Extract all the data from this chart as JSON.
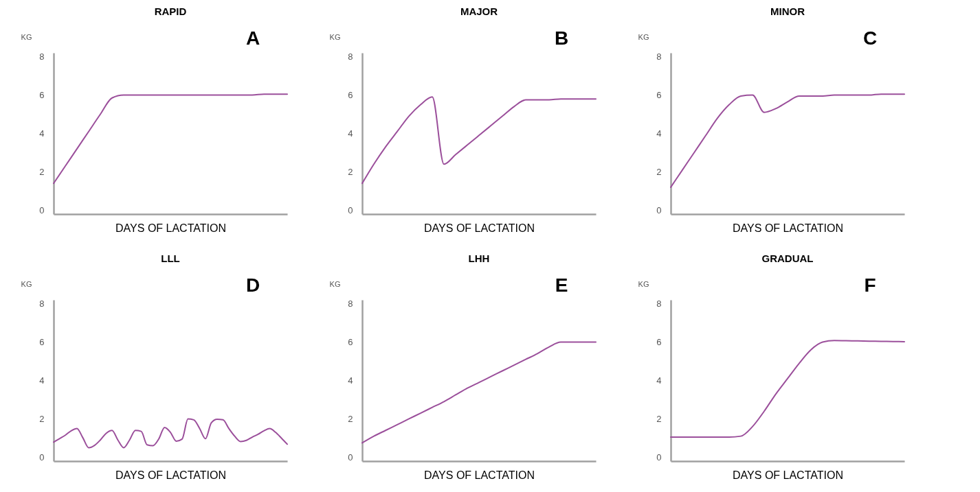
{
  "chart_data": [
    {
      "type": "line",
      "title": "RAPID",
      "annotations": [
        "A"
      ],
      "xlabel": "DAYS OF LACTATION",
      "ylabel": "KG",
      "ylim": [
        -0.2,
        8.2
      ],
      "yticks": [
        0,
        2,
        4,
        6,
        8
      ],
      "tick_labels": "y",
      "categories": [
        null,
        null,
        null,
        null,
        null,
        null,
        null,
        null,
        null,
        null,
        null,
        null,
        null,
        null,
        null,
        null,
        null,
        null,
        null,
        null,
        null
      ],
      "series": [
        {
          "color": "#9b4f9b",
          "values": [
            1.4,
            2.3,
            3.2,
            4.1,
            5.0,
            5.85,
            6.0,
            6.0,
            6.0,
            6.0,
            6.0,
            6.0,
            6.0,
            6.0,
            6.0,
            6.0,
            6.0,
            6.0,
            6.05,
            6.05,
            6.05
          ]
        }
      ]
    },
    {
      "type": "line",
      "title": "MAJOR",
      "annotations": [
        "B"
      ],
      "xlabel": "DAYS OF LACTATION",
      "ylabel": "KG",
      "ylim": [
        -0.2,
        8.2
      ],
      "yticks": [
        0,
        2,
        4,
        6,
        8
      ],
      "tick_labels": "y",
      "categories": [
        null,
        null,
        null,
        null,
        null,
        null,
        null,
        null,
        null,
        null,
        null,
        null,
        null,
        null,
        null,
        null,
        null,
        null,
        null,
        null,
        null
      ],
      "series": [
        {
          "color": "#9b4f9b",
          "values": [
            1.4,
            2.4,
            3.3,
            4.1,
            4.9,
            5.5,
            5.9,
            2.4,
            2.9,
            3.4,
            3.9,
            4.4,
            4.9,
            5.4,
            5.75,
            5.75,
            5.75,
            5.8,
            5.8,
            5.8,
            5.8
          ]
        }
      ]
    },
    {
      "type": "line",
      "title": "MINOR",
      "annotations": [
        "C"
      ],
      "xlabel": "DAYS OF LACTATION",
      "ylabel": "KG",
      "ylim": [
        -0.2,
        8.2
      ],
      "yticks": [
        0,
        2,
        4,
        6,
        8
      ],
      "tick_labels": "y",
      "categories": [
        null,
        null,
        null,
        null,
        null,
        null,
        null,
        null,
        null,
        null,
        null,
        null,
        null,
        null,
        null,
        null,
        null,
        null,
        null,
        null,
        null
      ],
      "series": [
        {
          "color": "#9b4f9b",
          "values": [
            1.2,
            2.1,
            3.0,
            3.9,
            4.8,
            5.5,
            5.95,
            6.0,
            5.1,
            5.3,
            5.65,
            5.95,
            5.95,
            5.95,
            6.0,
            6.0,
            6.0,
            6.0,
            6.05,
            6.05,
            6.05
          ]
        }
      ]
    },
    {
      "type": "line",
      "title": "LLL",
      "annotations": [
        "D"
      ],
      "xlabel": "DAYS OF LACTATION",
      "ylabel": "KG",
      "ylim": [
        -0.2,
        8.2
      ],
      "yticks": [
        0,
        2,
        4,
        6,
        8
      ],
      "tick_labels": "y",
      "categories": [
        null,
        null,
        null,
        null,
        null,
        null,
        null,
        null,
        null,
        null,
        null,
        null,
        null,
        null,
        null,
        null,
        null,
        null,
        null,
        null,
        null,
        null,
        null,
        null,
        null,
        null,
        null,
        null,
        null,
        null,
        null,
        null,
        null,
        null,
        null,
        null,
        null,
        null,
        null,
        null,
        null
      ],
      "series": [
        {
          "color": "#9b4f9b",
          "values": [
            0.79,
            0.97,
            1.15,
            1.38,
            1.5,
            1.02,
            0.5,
            0.62,
            0.9,
            1.25,
            1.4,
            0.9,
            0.5,
            0.9,
            1.4,
            1.35,
            0.65,
            0.6,
            0.95,
            1.55,
            1.3,
            0.84,
            0.95,
            2.0,
            1.95,
            1.5,
            0.97,
            1.8,
            1.98,
            1.95,
            1.5,
            1.1,
            0.82,
            0.88,
            1.05,
            1.2,
            1.38,
            1.5,
            1.3,
            1.0,
            0.68
          ]
        }
      ]
    },
    {
      "type": "line",
      "title": "LHH",
      "annotations": [
        "E"
      ],
      "xlabel": "DAYS OF LACTATION",
      "ylabel": "KG",
      "ylim": [
        -0.2,
        8.2
      ],
      "yticks": [
        0,
        2,
        4,
        6,
        8
      ],
      "tick_labels": "y",
      "categories": [
        null,
        null,
        null,
        null,
        null,
        null,
        null,
        null,
        null,
        null,
        null,
        null,
        null,
        null,
        null,
        null,
        null,
        null,
        null,
        null,
        null
      ],
      "series": [
        {
          "color": "#9b4f9b",
          "values": [
            0.75,
            1.1,
            1.4,
            1.7,
            2.0,
            2.3,
            2.6,
            2.9,
            3.25,
            3.6,
            3.9,
            4.2,
            4.5,
            4.8,
            5.1,
            5.4,
            5.75,
            6.0,
            6.0,
            6.0,
            6.0
          ]
        }
      ]
    },
    {
      "type": "line",
      "title": "GRADUAL",
      "annotations": [
        "F"
      ],
      "xlabel": "DAYS OF LACTATION",
      "ylabel": "KG",
      "ylim": [
        -0.2,
        8.2
      ],
      "yticks": [
        0,
        2,
        4,
        6,
        8
      ],
      "tick_labels": "y",
      "categories": [
        null,
        null,
        null,
        null,
        null,
        null,
        null,
        null,
        null,
        null,
        null,
        null,
        null,
        null,
        null,
        null,
        null,
        null,
        null,
        null,
        null
      ],
      "series": [
        {
          "color": "#9b4f9b",
          "values": [
            1.05,
            1.05,
            1.05,
            1.05,
            1.05,
            1.05,
            1.1,
            1.6,
            2.4,
            3.3,
            4.1,
            4.9,
            5.6,
            6.0,
            6.08,
            6.07,
            6.06,
            6.05,
            6.04,
            6.03,
            6.02
          ]
        }
      ]
    }
  ]
}
